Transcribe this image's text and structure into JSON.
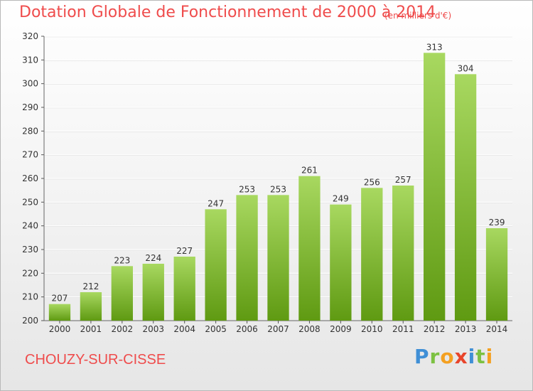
{
  "header": {
    "title": "Dotation Globale de Fonctionnement de 2000 à 2014",
    "unit": "(en milliers d'€)"
  },
  "footer": {
    "commune": "CHOUZY-SUR-CISSE",
    "logo_text": "Proxiti"
  },
  "colors": {
    "title": "#ef4c4c",
    "bar_top": "#a8d860",
    "bar_bottom": "#5f9a12",
    "grid": "#ffffff"
  },
  "chart_data": {
    "type": "bar",
    "title": "Dotation Globale de Fonctionnement de 2000 à 2014",
    "xlabel": "",
    "ylabel": "",
    "categories": [
      "2000",
      "2001",
      "2002",
      "2003",
      "2004",
      "2005",
      "2006",
      "2007",
      "2008",
      "2009",
      "2010",
      "2011",
      "2012",
      "2013",
      "2014"
    ],
    "values": [
      207,
      212,
      223,
      224,
      227,
      247,
      253,
      253,
      261,
      249,
      256,
      257,
      313,
      304,
      239
    ],
    "ylim": [
      200,
      320
    ],
    "yticks": [
      200,
      210,
      220,
      230,
      240,
      250,
      260,
      270,
      280,
      290,
      300,
      310,
      320
    ],
    "grid": true,
    "legend": "none"
  }
}
